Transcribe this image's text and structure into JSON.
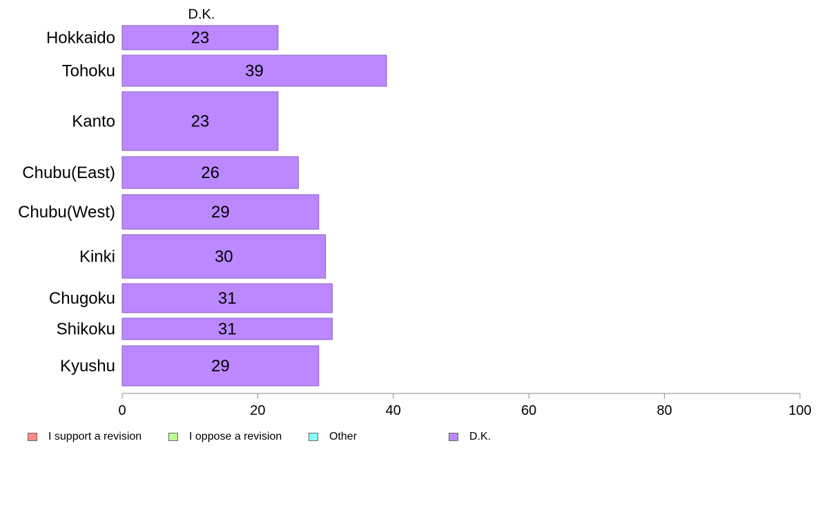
{
  "chart_data": {
    "type": "bar",
    "orientation": "horizontal",
    "title": "D.K.",
    "categories": [
      "Hokkaido",
      "Tohoku",
      "Kanto",
      "Chubu(East)",
      "Chubu(West)",
      "Kinki",
      "Chugoku",
      "Shikoku",
      "Kyushu"
    ],
    "series": [
      {
        "name": "D.K.",
        "values": [
          23,
          39,
          23,
          26,
          29,
          30,
          31,
          31,
          29
        ],
        "color": "#bb88ff"
      }
    ],
    "xlim": [
      0,
      100
    ],
    "xticks": [
      "0",
      "20",
      "40",
      "60",
      "80",
      "100"
    ],
    "grid": false,
    "legend": {
      "placement": "bottom",
      "entries": [
        {
          "label": "I support a revision",
          "color": "#ff8888"
        },
        {
          "label": "I oppose a revision",
          "color": "#bbff88"
        },
        {
          "label": "Other",
          "color": "#88ffff"
        },
        {
          "label": "D.K.",
          "color": "#bb88ff"
        }
      ]
    }
  }
}
